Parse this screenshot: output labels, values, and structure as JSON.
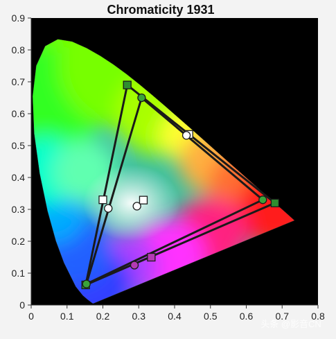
{
  "chart_data": {
    "type": "scatter",
    "title": "Chromaticity 1931",
    "xlabel": "",
    "ylabel": "",
    "xlim": [
      0,
      0.8
    ],
    "ylim": [
      0,
      0.9
    ],
    "x_ticks": [
      "0",
      "0.1",
      "0.2",
      "0.3",
      "0.4",
      "0.5",
      "0.6",
      "0.7",
      "0.8"
    ],
    "y_ticks": [
      "0",
      "0.1",
      "0.2",
      "0.3",
      "0.4",
      "0.5",
      "0.6",
      "0.7",
      "0.8",
      "0.9"
    ],
    "grid": false,
    "background": "#000000",
    "spectral_locus": [
      [
        0.1741,
        0.005
      ],
      [
        0.1738,
        0.0049
      ],
      [
        0.1733,
        0.0048
      ],
      [
        0.1726,
        0.0048
      ],
      [
        0.1714,
        0.0051
      ],
      [
        0.1689,
        0.0069
      ],
      [
        0.1644,
        0.0109
      ],
      [
        0.1566,
        0.0177
      ],
      [
        0.144,
        0.0297
      ],
      [
        0.1241,
        0.0578
      ],
      [
        0.0913,
        0.1327
      ],
      [
        0.0687,
        0.2007
      ],
      [
        0.0454,
        0.295
      ],
      [
        0.0235,
        0.4127
      ],
      [
        0.0082,
        0.5384
      ],
      [
        0.0039,
        0.6548
      ],
      [
        0.0139,
        0.7502
      ],
      [
        0.0389,
        0.812
      ],
      [
        0.0743,
        0.8338
      ],
      [
        0.1142,
        0.8262
      ],
      [
        0.1547,
        0.8059
      ],
      [
        0.1929,
        0.7816
      ],
      [
        0.2296,
        0.7543
      ],
      [
        0.2658,
        0.7243
      ],
      [
        0.3016,
        0.6923
      ],
      [
        0.3373,
        0.6589
      ],
      [
        0.3731,
        0.6245
      ],
      [
        0.4087,
        0.5896
      ],
      [
        0.4441,
        0.5547
      ],
      [
        0.4788,
        0.5202
      ],
      [
        0.5125,
        0.4866
      ],
      [
        0.5448,
        0.4544
      ],
      [
        0.5752,
        0.4242
      ],
      [
        0.6029,
        0.3965
      ],
      [
        0.627,
        0.3725
      ],
      [
        0.6482,
        0.3514
      ],
      [
        0.6658,
        0.334
      ],
      [
        0.6801,
        0.3197
      ],
      [
        0.6915,
        0.3083
      ],
      [
        0.7006,
        0.2993
      ],
      [
        0.714,
        0.286
      ],
      [
        0.7347,
        0.2653
      ]
    ],
    "series": [
      {
        "marker": "square",
        "color": "#2f8f2f",
        "closed": true,
        "points": [
          [
            0.268,
            0.69
          ],
          [
            0.68,
            0.32
          ],
          [
            0.152,
            0.063
          ]
        ]
      },
      {
        "marker": "circle",
        "color": "#3aa33a",
        "closed": true,
        "points": [
          [
            0.308,
            0.65
          ],
          [
            0.646,
            0.33
          ],
          [
            0.154,
            0.066
          ]
        ]
      },
      {
        "marker": "square",
        "color": "#ffffff",
        "closed": false,
        "points": [
          [
            0.44,
            0.535
          ],
          [
            0.2,
            0.33
          ],
          [
            0.313,
            0.329
          ]
        ]
      },
      {
        "marker": "circle",
        "color": "#ffffff",
        "closed": false,
        "points": [
          [
            0.433,
            0.532
          ],
          [
            0.215,
            0.303
          ],
          [
            0.295,
            0.31
          ]
        ]
      },
      {
        "marker": "square",
        "color": "#b43ab4",
        "closed": false,
        "points": [
          [
            0.335,
            0.15
          ]
        ]
      },
      {
        "marker": "circle",
        "color": "#b43ab4",
        "closed": false,
        "points": [
          [
            0.288,
            0.125
          ]
        ]
      }
    ]
  },
  "watermark": "头条 @影音CN"
}
